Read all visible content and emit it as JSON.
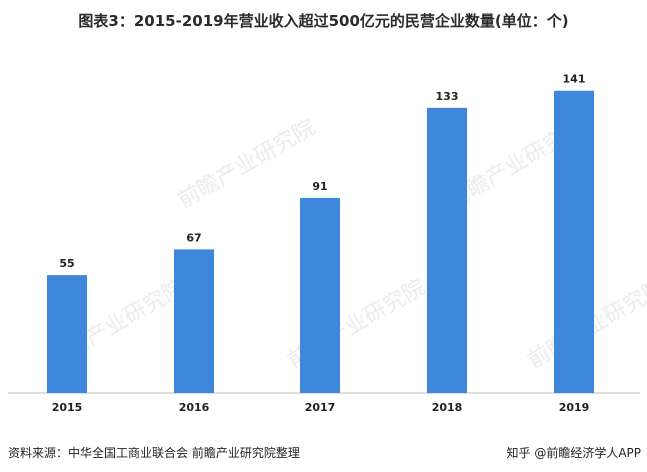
{
  "chart_data": {
    "type": "bar",
    "title": "图表3：2015-2019年营业收入超过500亿元的民营企业数量(单位：个)",
    "categories": [
      "2015",
      "2016",
      "2017",
      "2018",
      "2019"
    ],
    "values": [
      55,
      67,
      91,
      133,
      141
    ],
    "ylim": [
      0,
      160
    ],
    "grid": false,
    "bar_color": "#3f87dc"
  },
  "watermark": "前瞻产业研究院",
  "source": "资料来源：中华全国工商业联合会 前瞻产业研究院整理",
  "credit": "知乎 @前瞻经济学人APP"
}
